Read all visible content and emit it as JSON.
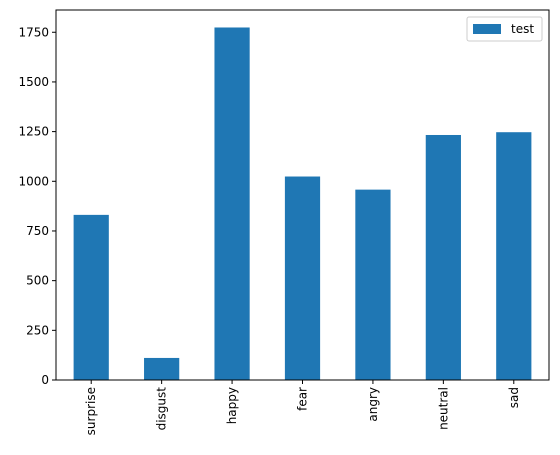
{
  "chart_data": {
    "type": "bar",
    "categories": [
      "surprise",
      "disgust",
      "happy",
      "fear",
      "angry",
      "neutral",
      "sad"
    ],
    "series": [
      {
        "name": "test",
        "values": [
          831,
          111,
          1774,
          1024,
          958,
          1233,
          1247
        ],
        "color": "#1f77b4"
      }
    ],
    "title": "",
    "xlabel": "",
    "ylabel": "",
    "ylim": [
      0,
      1862
    ],
    "yticks": [
      0,
      250,
      500,
      750,
      1000,
      1250,
      1500,
      1750
    ],
    "grid": false,
    "legend": "top-right"
  }
}
